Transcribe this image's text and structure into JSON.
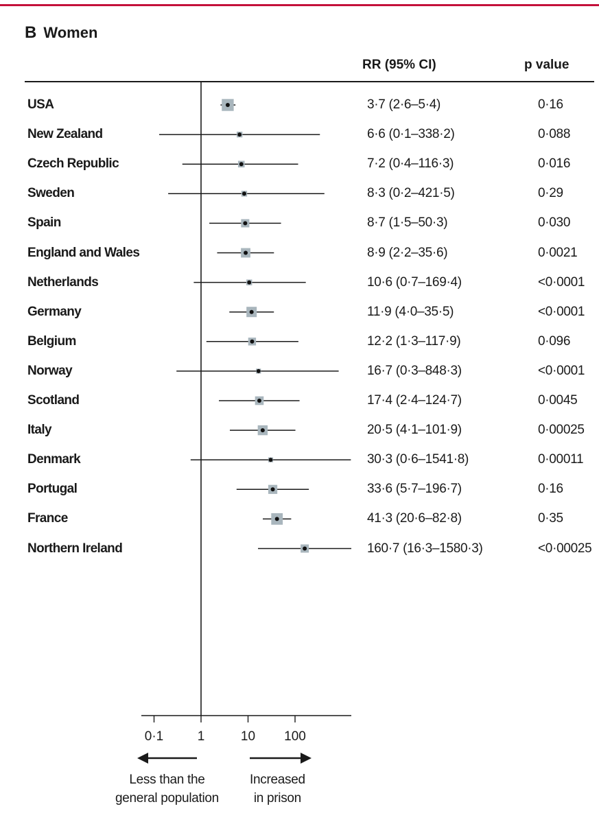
{
  "accent_color": "#c4103a",
  "panel": {
    "letter": "B",
    "title": "Women"
  },
  "columns": {
    "rr_header": "RR (95% CI)",
    "p_header": "p value"
  },
  "chart_data": {
    "type": "forest",
    "x_scale": "log",
    "xlim": [
      0.05,
      3000
    ],
    "reference_line": 1,
    "x_ticks": [
      {
        "value": 0.1,
        "label": "0·1"
      },
      {
        "value": 1,
        "label": "1"
      },
      {
        "value": 10,
        "label": "10"
      },
      {
        "value": 100,
        "label": "100"
      }
    ],
    "left_direction_label": [
      "Less than the",
      "general population"
    ],
    "right_direction_label": [
      "Increased",
      "in prison"
    ],
    "rows": [
      {
        "country": "USA",
        "rr": 3.7,
        "lower": 2.6,
        "upper": 5.4,
        "rr_text": "3·7 (2·6–5·4)",
        "p_text": "0·16",
        "weight": 0.95
      },
      {
        "country": "New Zealand",
        "rr": 6.6,
        "lower": 0.1,
        "upper": 338.2,
        "rr_text": "6·6 (0·1–338·2)",
        "p_text": "0·088",
        "weight": 0.2
      },
      {
        "country": "Czech Republic",
        "rr": 7.2,
        "lower": 0.4,
        "upper": 116.3,
        "rr_text": "7·2 (0·4–116·3)",
        "p_text": "0·016",
        "weight": 0.3
      },
      {
        "country": "Sweden",
        "rr": 8.3,
        "lower": 0.2,
        "upper": 421.5,
        "rr_text": "8·3 (0·2–421·5)",
        "p_text": "0·29",
        "weight": 0.2
      },
      {
        "country": "Spain",
        "rr": 8.7,
        "lower": 1.5,
        "upper": 50.3,
        "rr_text": "8·7 (1·5–50·3)",
        "p_text": "0·030",
        "weight": 0.5
      },
      {
        "country": "England and Wales",
        "rr": 8.9,
        "lower": 2.2,
        "upper": 35.6,
        "rr_text": "8·9 (2·2–35·6)",
        "p_text": "0·0021",
        "weight": 0.65
      },
      {
        "country": "Netherlands",
        "rr": 10.6,
        "lower": 0.7,
        "upper": 169.4,
        "rr_text": "10·6 (0·7–169·4)",
        "p_text": "<0·0001",
        "weight": 0.2
      },
      {
        "country": "Germany",
        "rr": 11.9,
        "lower": 4.0,
        "upper": 35.5,
        "rr_text": "11·9 (4·0–35·5)",
        "p_text": "<0·0001",
        "weight": 0.75
      },
      {
        "country": "Belgium",
        "rr": 12.2,
        "lower": 1.3,
        "upper": 117.9,
        "rr_text": "12·2 (1·3–117·9)",
        "p_text": "0·096",
        "weight": 0.45
      },
      {
        "country": "Norway",
        "rr": 16.7,
        "lower": 0.3,
        "upper": 848.3,
        "rr_text": "16·7 (0·3–848·3)",
        "p_text": "<0·0001",
        "weight": 0.1
      },
      {
        "country": "Scotland",
        "rr": 17.4,
        "lower": 2.4,
        "upper": 124.7,
        "rr_text": "17·4 (2·4–124·7)",
        "p_text": "0·0045",
        "weight": 0.55
      },
      {
        "country": "Italy",
        "rr": 20.5,
        "lower": 4.1,
        "upper": 101.9,
        "rr_text": "20·5 (4·1–101·9)",
        "p_text": "0·00025",
        "weight": 0.7
      },
      {
        "country": "Denmark",
        "rr": 30.3,
        "lower": 0.6,
        "upper": 1541.8,
        "rr_text": "30·3 (0·6–1541·8)",
        "p_text": "0·00011",
        "weight": 0.1
      },
      {
        "country": "Portugal",
        "rr": 33.6,
        "lower": 5.7,
        "upper": 196.7,
        "rr_text": "33·6 (5·7–196·7)",
        "p_text": "0·16",
        "weight": 0.6
      },
      {
        "country": "France",
        "rr": 41.3,
        "lower": 20.6,
        "upper": 82.8,
        "rr_text": "41·3 (20·6–82·8)",
        "p_text": "0·35",
        "weight": 0.9
      },
      {
        "country": "Northern Ireland",
        "rr": 160.7,
        "lower": 16.3,
        "upper": 1580.3,
        "rr_text": "160·7 (16·3–1580·3)",
        "p_text": "<0·00025",
        "weight": 0.5
      }
    ]
  }
}
